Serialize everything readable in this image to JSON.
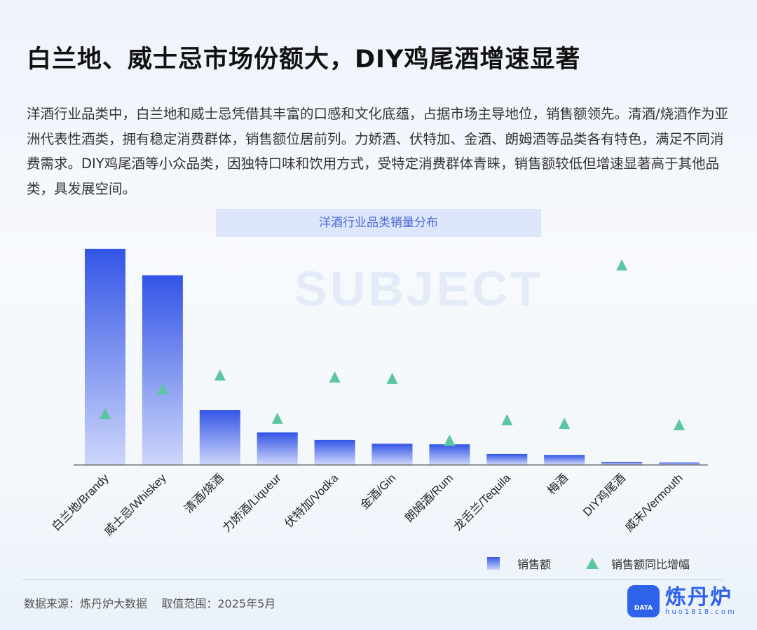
{
  "watermark": "SUBJECT",
  "header": {
    "title": "白兰地、威士忌市场份额大，DIY鸡尾酒增速显著"
  },
  "description": "洋酒行业品类中，白兰地和威士忌凭借其丰富的口感和文化底蕴，占据市场主导地位，销售额领先。清酒/烧酒作为亚洲代表性酒类，拥有稳定消费群体，销售额位居前列。力娇酒、伏特加、金酒、朗姆酒等品类各有特色，满足不同消费需求。DIY鸡尾酒等小众品类，因独特口味和饮用方式，受特定消费群体青睐，销售额较低但增速显著高于其他品类，具发展空间。",
  "chart_data": {
    "type": "bar",
    "title": "洋酒行业品类销量分布",
    "categories": [
      "白兰地/Brandy",
      "威士忌/Whiskey",
      "清酒/烧酒",
      "力娇酒/Liqueur",
      "伏特加/Vodka",
      "金酒/Gin",
      "朗姆酒/Rum",
      "龙舌兰/Tequila",
      "梅酒",
      "DIY鸡尾酒",
      "威末/Vermouth"
    ],
    "series": [
      {
        "name": "销售额",
        "type": "bar",
        "values": [
          100,
          87.7,
          25.3,
          14.9,
          11.4,
          9.7,
          9.4,
          4.9,
          4.5,
          1.3,
          1.0
        ]
      },
      {
        "name": "销售额同比增幅",
        "type": "scatter",
        "marker": "triangle",
        "values": [
          25.6,
          37.9,
          44.9,
          23.2,
          43.9,
          43.2,
          12.3,
          22.5,
          20.7,
          100,
          20.0
        ]
      }
    ],
    "value_note": "relative scale, no axis values printed",
    "ylim": [
      0,
      100
    ],
    "grid": false,
    "legend_position": "bottom-right",
    "colors": {
      "bar_top": "#3355e6",
      "bar_bottom": "#cdd6fa",
      "marker": "#5cc6a0",
      "axis": "#555555"
    }
  },
  "legend": {
    "bar_label": "销售额",
    "marker_label": "销售额同比增幅"
  },
  "footer": {
    "source": "数据来源：炼丹炉大数据    取值范围：2025年5月"
  },
  "logo": {
    "name": "炼丹炉",
    "url": "huo1818.com",
    "icon_text": "DATA"
  }
}
